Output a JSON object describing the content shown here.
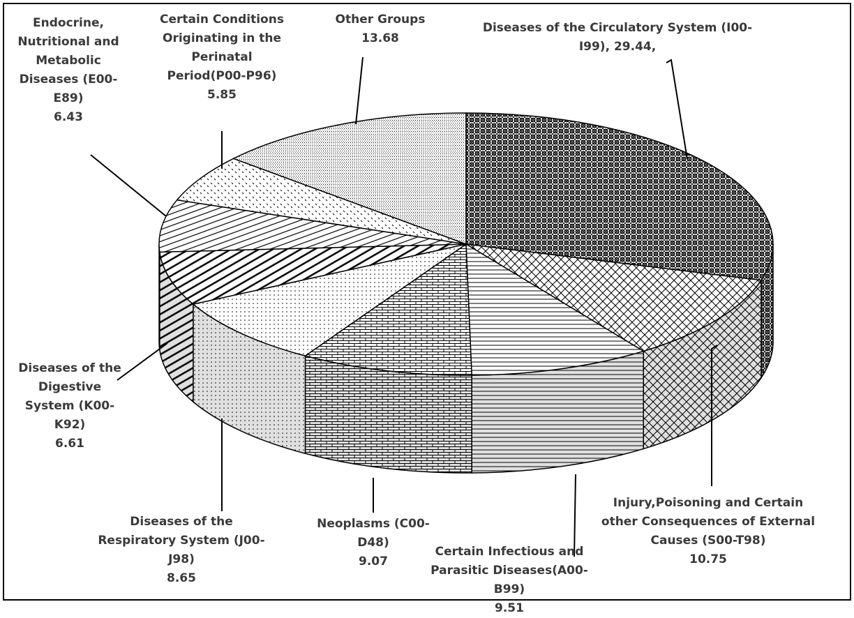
{
  "chart_data": {
    "type": "pie",
    "categories": [
      "Diseases of the Circulatory System (I00-I99),",
      "Injury,Poisoning and Certain other Consequences of External Causes (S00-T98)",
      "Certain Infectious and Parasitic Diseases(A00-B99)",
      "Neoplasms (C00-D48)",
      "Diseases of the Respiratory System (J00-J98)",
      "Diseases of the Digestive System (K00-K92)",
      "Endocrine, Nutritional and Metabolic Diseases (E00-E89)",
      "Certain Conditions Originating in the Perinatal Period(P00-P96)",
      "Other Groups"
    ],
    "values": [
      29.44,
      10.75,
      9.51,
      9.07,
      8.65,
      6.61,
      6.43,
      5.85,
      13.68
    ],
    "value_labels": [
      "29.44,",
      "10.75",
      "9.51",
      "9.07",
      "8.65",
      "6.61",
      "6.43",
      "5.85",
      "13.68"
    ]
  }
}
